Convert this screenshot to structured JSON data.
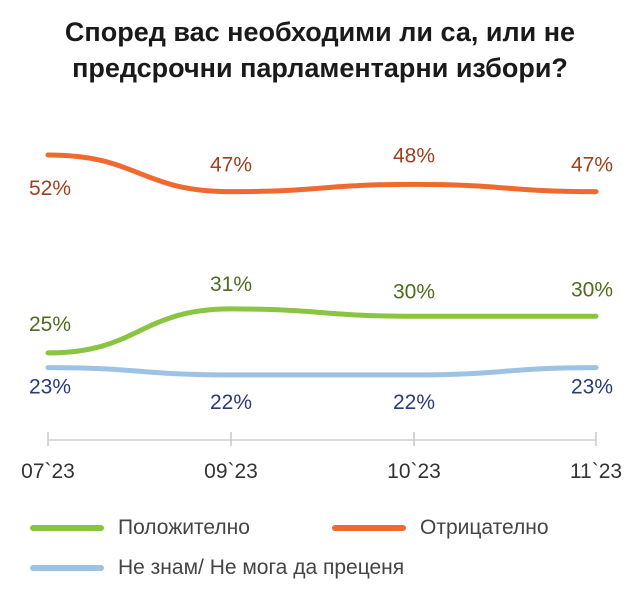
{
  "title_lines": [
    "Според вас необходими ли са, или не",
    "предсрочни парламентарни избори?"
  ],
  "chart_data": {
    "type": "line",
    "title": "Според вас необходими ли са, или не предсрочни парламентарни избори?",
    "categories": [
      "07`23",
      "09`23",
      "10`23",
      "11`23"
    ],
    "series": [
      {
        "name": "Положително",
        "values": [
          25,
          31,
          30,
          30
        ],
        "labels": [
          "25%",
          "31%",
          "30%",
          "30%"
        ],
        "color": "#8ac542",
        "label_color": "#4f6b1f"
      },
      {
        "name": "Отрицателно",
        "values": [
          52,
          47,
          48,
          47
        ],
        "labels": [
          "52%",
          "47%",
          "48%",
          "47%"
        ],
        "color": "#f06a2f",
        "label_color": "#a0401d"
      },
      {
        "name": "Не знам/ Не мога да преценя",
        "values": [
          23,
          22,
          22,
          23
        ],
        "labels": [
          "23%",
          "22%",
          "22%",
          "23%"
        ],
        "color": "#9cc3e6",
        "label_color": "#2b3a78"
      }
    ],
    "legend": "bottom"
  }
}
